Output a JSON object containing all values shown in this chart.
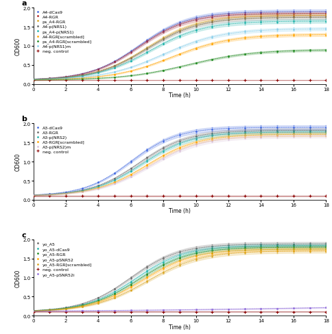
{
  "time_fine": 200,
  "t_max": 18,
  "xlim": [
    0,
    18
  ],
  "ylim": [
    0.0,
    2.0
  ],
  "yticks": [
    0.0,
    0.5,
    1.0,
    1.5,
    2.0
  ],
  "xticks": [
    0,
    2,
    4,
    6,
    8,
    10,
    12,
    14,
    16,
    18
  ],
  "xlabel": "Time (h)",
  "ylabel": "OD600",
  "fig_bg": "#ffffff",
  "panel_bg": "#ffffff",
  "legend_fontsize": 4.5,
  "axis_fontsize": 5.5,
  "label_fontsize": 8,
  "tick_fontsize": 5,
  "panel_a": {
    "label": "a",
    "series": [
      {
        "name": "A4-dCas9",
        "color": "#4169E1",
        "OD0": 0.1,
        "OD_max": 1.9,
        "lag": 6.5,
        "rate": 0.65,
        "style": "dot"
      },
      {
        "name": "A4-RGR",
        "color": "#B22222",
        "OD0": 0.1,
        "OD_max": 1.85,
        "lag": 6.5,
        "rate": 0.65,
        "style": "dot"
      },
      {
        "name": "ps_A4-RGR",
        "color": "#DAA520",
        "OD0": 0.1,
        "OD_max": 1.8,
        "lag": 7.0,
        "rate": 0.62,
        "style": "dot"
      },
      {
        "name": "A4-p(NRS1)",
        "color": "#696969",
        "OD0": 0.1,
        "OD_max": 1.75,
        "lag": 7.0,
        "rate": 0.62,
        "style": "dot"
      },
      {
        "name": "ps_A4-p(NRS1)",
        "color": "#20B2AA",
        "OD0": 0.1,
        "OD_max": 1.65,
        "lag": 7.2,
        "rate": 0.6,
        "style": "dot"
      },
      {
        "name": "A4-RGR[scrambled]",
        "color": "#FFA500",
        "OD0": 0.1,
        "OD_max": 1.3,
        "lag": 8.5,
        "rate": 0.55,
        "style": "dot"
      },
      {
        "name": "ps_A4-RGR[scrambled]",
        "color": "#228B22",
        "OD0": 0.1,
        "OD_max": 0.9,
        "lag": 9.5,
        "rate": 0.5,
        "style": "dot"
      },
      {
        "name": "A4-p(NRS1)m",
        "color": "#87CEEB",
        "OD0": 0.1,
        "OD_max": 1.45,
        "lag": 8.0,
        "rate": 0.55,
        "style": "dot"
      },
      {
        "name": "neg. control",
        "color": "#8B0000",
        "OD0": 0.1,
        "OD_max": 0.16,
        "lag": 100.0,
        "rate": 0.1,
        "style": "cross"
      }
    ]
  },
  "panel_b": {
    "label": "b",
    "series": [
      {
        "name": "A3-dCas9",
        "color": "#4169E1",
        "OD0": 0.1,
        "OD_max": 1.9,
        "lag": 6.0,
        "rate": 0.7,
        "style": "dot"
      },
      {
        "name": "A3-RGR",
        "color": "#696969",
        "OD0": 0.1,
        "OD_max": 1.82,
        "lag": 6.5,
        "rate": 0.67,
        "style": "dot"
      },
      {
        "name": "A3-p(NRS2)",
        "color": "#20B2AA",
        "OD0": 0.1,
        "OD_max": 1.78,
        "lag": 6.7,
        "rate": 0.65,
        "style": "dot"
      },
      {
        "name": "A3-RGR[scrambled]",
        "color": "#FFA500",
        "OD0": 0.1,
        "OD_max": 1.72,
        "lag": 7.0,
        "rate": 0.63,
        "style": "dot"
      },
      {
        "name": "A3-p(NRS2)m",
        "color": "#D8BFD8",
        "OD0": 0.1,
        "OD_max": 1.68,
        "lag": 7.2,
        "rate": 0.62,
        "style": "dot"
      },
      {
        "name": "neg. control",
        "color": "#8B0000",
        "OD0": 0.1,
        "OD_max": 0.28,
        "lag": 100.0,
        "rate": 0.1,
        "style": "cross"
      }
    ]
  },
  "panel_c": {
    "label": "c",
    "series": [
      {
        "name": "yo_A5",
        "color": "#696969",
        "OD0": 0.1,
        "OD_max": 1.88,
        "lag": 6.0,
        "rate": 0.67,
        "style": "dot"
      },
      {
        "name": "yo_A5-dCas9",
        "color": "#20B2AA",
        "OD0": 0.1,
        "OD_max": 1.84,
        "lag": 6.3,
        "rate": 0.65,
        "style": "dot"
      },
      {
        "name": "yo_A5-RGR",
        "color": "#228B22",
        "OD0": 0.1,
        "OD_max": 1.8,
        "lag": 6.5,
        "rate": 0.63,
        "style": "dot"
      },
      {
        "name": "yo_A5-pSNR52",
        "color": "#FFA500",
        "OD0": 0.1,
        "OD_max": 1.75,
        "lag": 6.7,
        "rate": 0.62,
        "style": "dot"
      },
      {
        "name": "yo_A5-RGR[scrambled]",
        "color": "#DAA520",
        "OD0": 0.1,
        "OD_max": 1.7,
        "lag": 7.0,
        "rate": 0.6,
        "style": "dot"
      },
      {
        "name": "neg. control",
        "color": "#8B0000",
        "OD0": 0.1,
        "OD_max": 0.13,
        "lag": 100.0,
        "rate": 0.05,
        "style": "cross"
      },
      {
        "name": "yo_A5-pSNR52i",
        "color": "#9370DB",
        "OD0": 0.1,
        "OD_max": 0.35,
        "lag": 20.0,
        "rate": 0.12,
        "style": "dot"
      }
    ]
  }
}
